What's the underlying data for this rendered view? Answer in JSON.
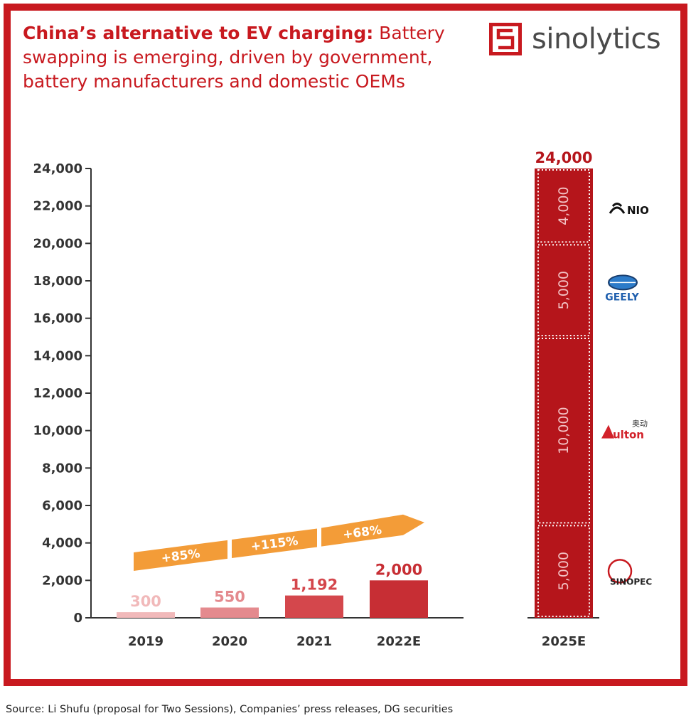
{
  "title": {
    "bold": "China’s alternative to EV charging:",
    "rest": " Battery swapping is emerging, driven by government, battery manufacturers and domestic OEMs"
  },
  "logo": {
    "text": "sinolytics",
    "icon": "sinolytics-logo-icon"
  },
  "source": "Source: Li Shufu (proposal for Two Sessions), Companies’ press releases, DG securities",
  "colors": {
    "frame": "#c8191f",
    "bar_2019": "#f1b9ba",
    "bar_2020": "#e48a8e",
    "bar_2021": "#d4474c",
    "bar_2022E": "#c72e34",
    "bar_2025E": "#b5151b",
    "arrow": "#f39c38"
  },
  "chart_data": {
    "type": "bar",
    "categories": [
      "2019",
      "2020",
      "2021",
      "2022E",
      "2025E"
    ],
    "values": [
      300,
      550,
      1192,
      2000,
      24000
    ],
    "value_labels": [
      "300",
      "550",
      "1,192",
      "2,000",
      "24,000"
    ],
    "ylim": [
      0,
      24000
    ],
    "yticks": [
      0,
      2000,
      4000,
      6000,
      8000,
      10000,
      12000,
      14000,
      16000,
      18000,
      20000,
      22000,
      24000
    ],
    "ytick_labels": [
      "0",
      "2,000",
      "4,000",
      "6,000",
      "8,000",
      "10,000",
      "12,000",
      "14,000",
      "16,000",
      "18,000",
      "20,000",
      "22,000",
      "24,000"
    ],
    "growth_rates": [
      "+85%",
      "+115%",
      "+68%"
    ],
    "stacked_2025E": [
      {
        "value": 5000,
        "label": "5,000",
        "company": "SINOPEC",
        "icon": "sinopec-logo-icon"
      },
      {
        "value": 10000,
        "label": "10,000",
        "company": "Aulton",
        "company_cn": "奥动",
        "icon": "aulton-logo-icon"
      },
      {
        "value": 5000,
        "label": "5,000",
        "company": "GEELY",
        "icon": "geely-logo-icon"
      },
      {
        "value": 4000,
        "label": "4,000",
        "company": "NIO",
        "icon": "nio-logo-icon"
      }
    ],
    "grid": false,
    "legend": "none"
  }
}
